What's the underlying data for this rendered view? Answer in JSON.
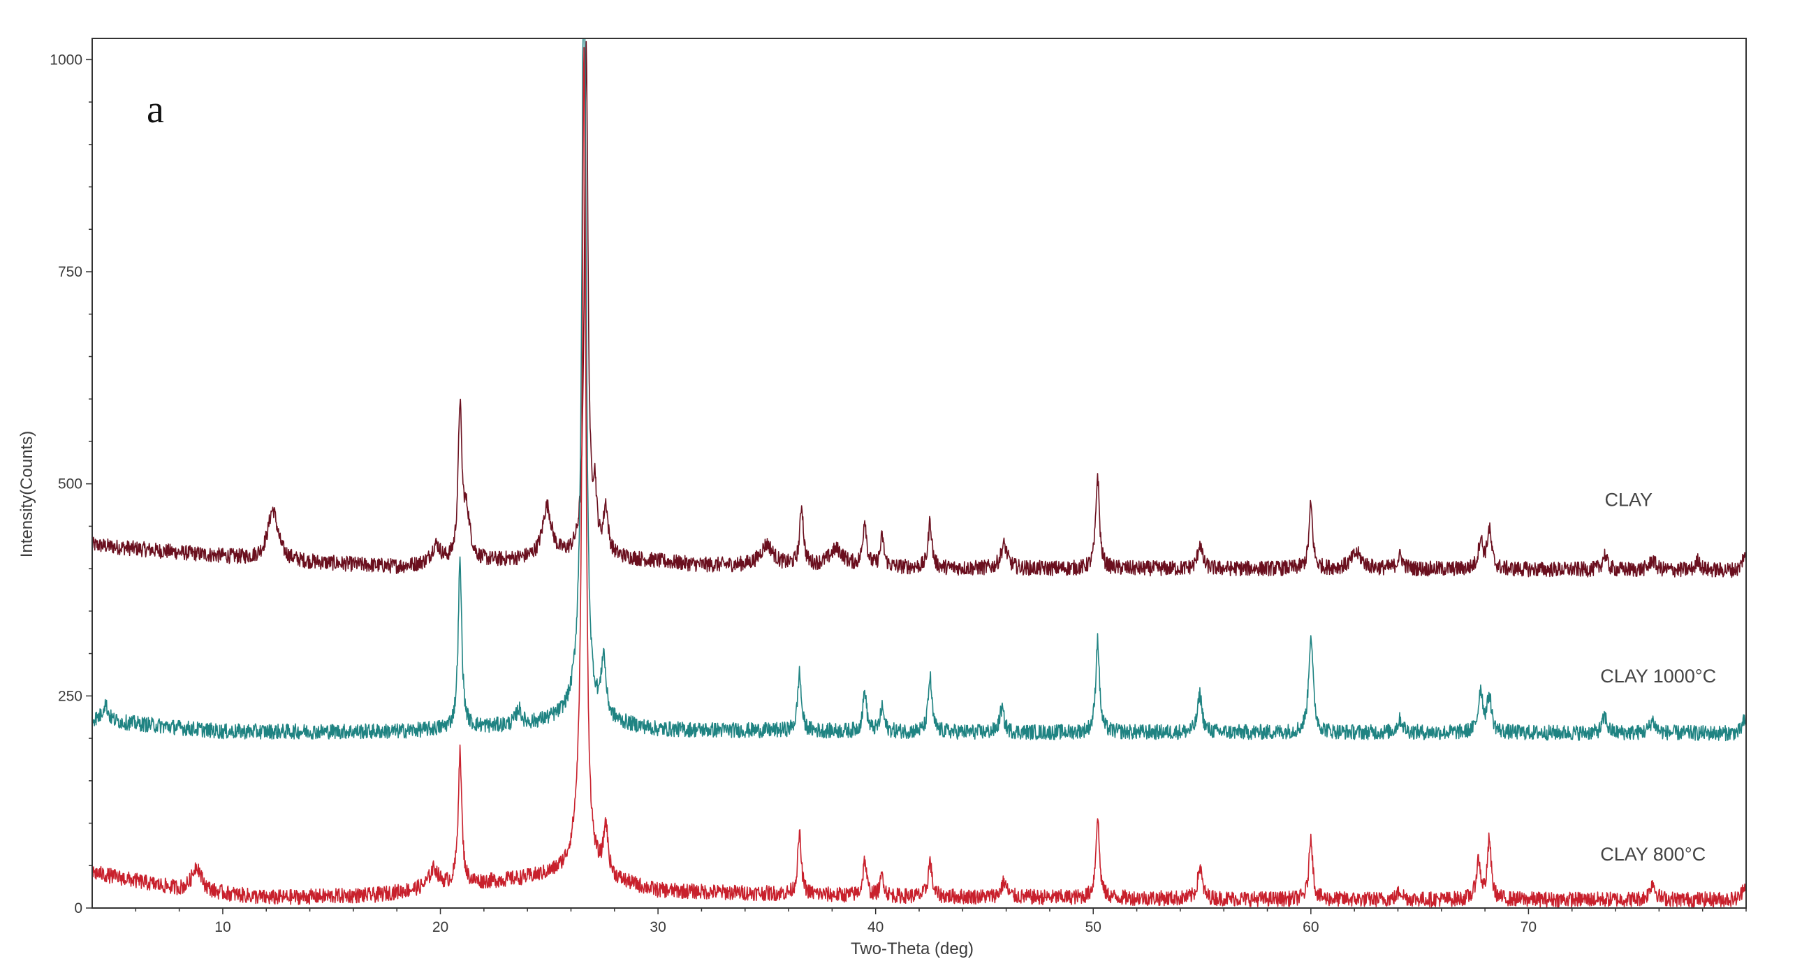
{
  "chart_data": {
    "type": "line",
    "panel_label": "a",
    "xlabel": "Two-Theta (deg)",
    "ylabel": "Intensity(Counts)",
    "xlim": [
      4,
      80
    ],
    "ylim": [
      0,
      1025
    ],
    "x_ticks": [
      10,
      20,
      30,
      40,
      50,
      60,
      70
    ],
    "y_ticks": [
      0,
      250,
      500,
      750,
      1000
    ],
    "grid": false,
    "legend": "inline-right",
    "colors": {
      "axis": "#333333",
      "frame": "#333333"
    },
    "series": [
      {
        "name": "CLAY",
        "color": "#6a0f1e",
        "baseline": [
          [
            4,
            428
          ],
          [
            12,
            410
          ],
          [
            18,
            402
          ],
          [
            22,
            408
          ],
          [
            27,
            415
          ],
          [
            32,
            404
          ],
          [
            45,
            400
          ],
          [
            60,
            400
          ],
          [
            80,
            398
          ]
        ],
        "peaks": [
          [
            12.3,
            60,
            0.28
          ],
          [
            19.8,
            22,
            0.25
          ],
          [
            20.9,
            175,
            0.1
          ],
          [
            21.2,
            55,
            0.2
          ],
          [
            24.9,
            60,
            0.25
          ],
          [
            26.7,
            600,
            0.1
          ],
          [
            27.1,
            65,
            0.1
          ],
          [
            27.6,
            55,
            0.12
          ],
          [
            35.0,
            25,
            0.35
          ],
          [
            36.6,
            70,
            0.1
          ],
          [
            38.2,
            20,
            0.4
          ],
          [
            39.5,
            55,
            0.1
          ],
          [
            40.3,
            35,
            0.1
          ],
          [
            42.5,
            55,
            0.1
          ],
          [
            45.9,
            28,
            0.18
          ],
          [
            50.2,
            110,
            0.1
          ],
          [
            54.9,
            30,
            0.12
          ],
          [
            60.0,
            75,
            0.1
          ],
          [
            62.1,
            18,
            0.3
          ],
          [
            64.1,
            15,
            0.15
          ],
          [
            67.8,
            35,
            0.12
          ],
          [
            68.2,
            45,
            0.12
          ],
          [
            73.5,
            18,
            0.12
          ],
          [
            75.7,
            12,
            0.15
          ],
          [
            77.8,
            12,
            0.12
          ],
          [
            79.9,
            18,
            0.1
          ]
        ],
        "label_pos": [
          73.5,
          474
        ]
      },
      {
        "name": "CLAY 1000°C",
        "color": "#1f8382",
        "baseline": [
          [
            4,
            222
          ],
          [
            10,
            208
          ],
          [
            18,
            208
          ],
          [
            24,
            216
          ],
          [
            26,
            224
          ],
          [
            30,
            210
          ],
          [
            45,
            207
          ],
          [
            60,
            207
          ],
          [
            80,
            206
          ]
        ],
        "peaks": [
          [
            4.6,
            20,
            0.15
          ],
          [
            20.9,
            195,
            0.1
          ],
          [
            23.6,
            18,
            0.15
          ],
          [
            26.6,
            1000,
            0.1
          ],
          [
            26.4,
            45,
            0.3
          ],
          [
            27.5,
            70,
            0.12
          ],
          [
            36.5,
            68,
            0.1
          ],
          [
            39.5,
            48,
            0.1
          ],
          [
            40.3,
            28,
            0.1
          ],
          [
            42.5,
            65,
            0.1
          ],
          [
            45.8,
            28,
            0.12
          ],
          [
            50.2,
            110,
            0.1
          ],
          [
            54.9,
            45,
            0.12
          ],
          [
            60.0,
            115,
            0.12
          ],
          [
            64.1,
            15,
            0.15
          ],
          [
            67.8,
            50,
            0.12
          ],
          [
            68.2,
            42,
            0.12
          ],
          [
            73.5,
            20,
            0.12
          ],
          [
            75.7,
            15,
            0.15
          ],
          [
            79.9,
            14,
            0.1
          ]
        ],
        "label_pos": [
          73.3,
          266
        ]
      },
      {
        "name": "CLAY 800°C",
        "color": "#c8202c",
        "baseline": [
          [
            4,
            42
          ],
          [
            8,
            22
          ],
          [
            12,
            12
          ],
          [
            17,
            15
          ],
          [
            20,
            25
          ],
          [
            24,
            35
          ],
          [
            26,
            42
          ],
          [
            30,
            20
          ],
          [
            40,
            14
          ],
          [
            60,
            10
          ],
          [
            80,
            10
          ]
        ],
        "peaks": [
          [
            8.8,
            30,
            0.25
          ],
          [
            19.7,
            22,
            0.25
          ],
          [
            20.9,
            155,
            0.1
          ],
          [
            26.6,
            940,
            0.1
          ],
          [
            26.4,
            50,
            0.3
          ],
          [
            27.6,
            58,
            0.12
          ],
          [
            36.5,
            70,
            0.1
          ],
          [
            39.5,
            42,
            0.1
          ],
          [
            40.3,
            25,
            0.1
          ],
          [
            42.5,
            42,
            0.1
          ],
          [
            45.9,
            18,
            0.15
          ],
          [
            50.2,
            95,
            0.1
          ],
          [
            54.9,
            38,
            0.12
          ],
          [
            60.0,
            75,
            0.1
          ],
          [
            64.1,
            10,
            0.15
          ],
          [
            67.7,
            45,
            0.12
          ],
          [
            68.2,
            70,
            0.1
          ],
          [
            75.7,
            20,
            0.15
          ],
          [
            79.9,
            18,
            0.1
          ]
        ],
        "label_pos": [
          73.3,
          56
        ]
      }
    ]
  }
}
